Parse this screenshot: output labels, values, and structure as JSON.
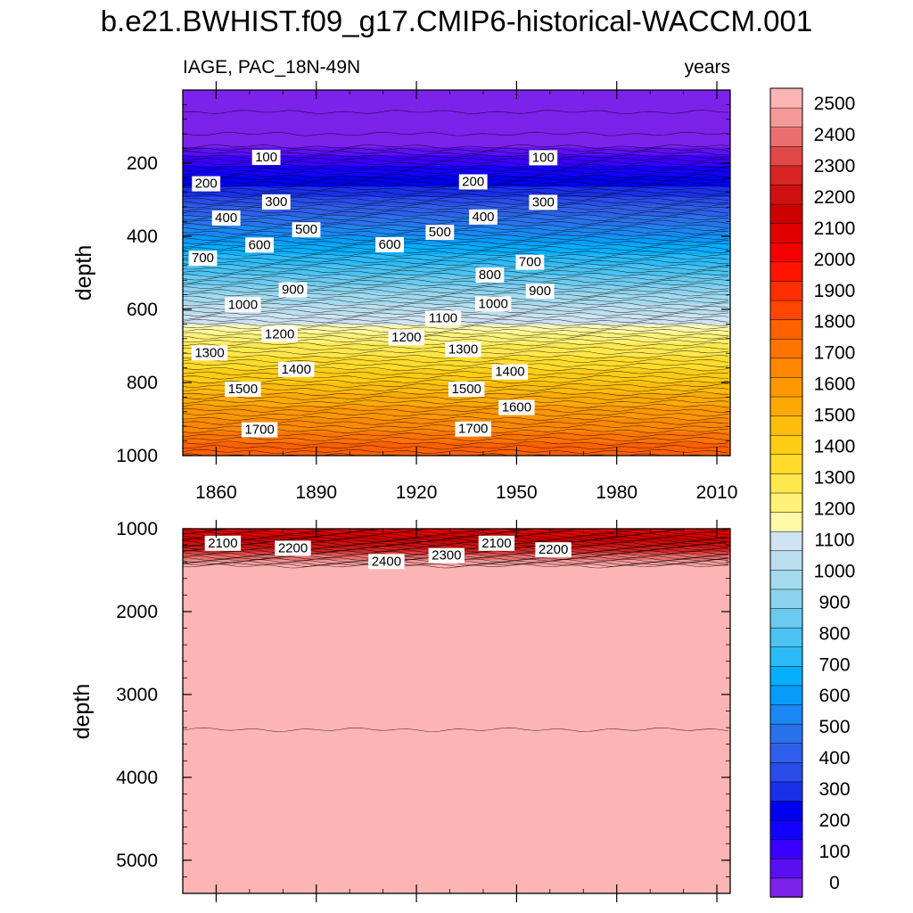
{
  "title": "b.e21.BWHIST.f09_g17.CMIP6-historical-WACCM.001",
  "chart_data": [
    {
      "type": "heatmap",
      "panel": "upper",
      "left_label": "IAGE, PAC_18N-49N",
      "right_label": "years",
      "ylabel": "depth",
      "xlim": [
        1850,
        2014
      ],
      "ylim": [
        1000,
        0
      ],
      "x_ticks": [
        1860,
        1890,
        1920,
        1950,
        1980,
        2010
      ],
      "y_ticks": [
        200,
        400,
        600,
        800,
        1000
      ],
      "contour_levels": [
        100,
        200,
        300,
        400,
        500,
        600,
        700,
        800,
        900,
        1000,
        1100,
        1200,
        1300,
        1400,
        1500,
        1600,
        1700
      ],
      "profile_depth": [
        0,
        150,
        690,
        1000
      ],
      "profile_age": [
        0,
        50,
        1250,
        1800
      ],
      "contour_labels": [
        {
          "text": "100",
          "x": 1875,
          "depth": 183
        },
        {
          "text": "200",
          "x": 1857,
          "depth": 255
        },
        {
          "text": "300",
          "x": 1878,
          "depth": 305
        },
        {
          "text": "400",
          "x": 1863,
          "depth": 349
        },
        {
          "text": "500",
          "x": 1887,
          "depth": 381
        },
        {
          "text": "600",
          "x": 1873,
          "depth": 423
        },
        {
          "text": "700",
          "x": 1856,
          "depth": 459
        },
        {
          "text": "900",
          "x": 1883,
          "depth": 545
        },
        {
          "text": "1000",
          "x": 1868,
          "depth": 586
        },
        {
          "text": "1200",
          "x": 1879,
          "depth": 667
        },
        {
          "text": "1300",
          "x": 1858,
          "depth": 718
        },
        {
          "text": "1400",
          "x": 1884,
          "depth": 763
        },
        {
          "text": "1500",
          "x": 1868,
          "depth": 817
        },
        {
          "text": "1700",
          "x": 1873,
          "depth": 928
        },
        {
          "text": "600",
          "x": 1912,
          "depth": 422
        },
        {
          "text": "1200",
          "x": 1917,
          "depth": 676
        },
        {
          "text": "200",
          "x": 1937,
          "depth": 250
        },
        {
          "text": "500",
          "x": 1927,
          "depth": 388
        },
        {
          "text": "1100",
          "x": 1928,
          "depth": 623
        },
        {
          "text": "1300",
          "x": 1934,
          "depth": 709
        },
        {
          "text": "1500",
          "x": 1935,
          "depth": 817
        },
        {
          "text": "1700",
          "x": 1937,
          "depth": 926
        },
        {
          "text": "400",
          "x": 1940,
          "depth": 346
        },
        {
          "text": "800",
          "x": 1942,
          "depth": 505
        },
        {
          "text": "1000",
          "x": 1943,
          "depth": 584
        },
        {
          "text": "1400",
          "x": 1948,
          "depth": 770
        },
        {
          "text": "1600",
          "x": 1950,
          "depth": 867
        },
        {
          "text": "100",
          "x": 1958,
          "depth": 184
        },
        {
          "text": "300",
          "x": 1958,
          "depth": 306
        },
        {
          "text": "700",
          "x": 1954,
          "depth": 470
        },
        {
          "text": "900",
          "x": 1957,
          "depth": 549
        }
      ]
    },
    {
      "type": "heatmap",
      "panel": "lower",
      "ylabel": "depth",
      "xlim": [
        1850,
        2014
      ],
      "ylim": [
        5400,
        1000
      ],
      "y_ticks": [
        1000,
        2000,
        3000,
        4000,
        5000
      ],
      "contour_levels": [
        2000,
        2100,
        2200,
        2300,
        2400,
        2500
      ],
      "profile_depth": [
        1000,
        1150,
        1450,
        5400
      ],
      "profile_age": [
        2000,
        2150,
        2480,
        2520
      ],
      "contour_labels": [
        {
          "text": "2100",
          "x": 1862,
          "depth": 1170
        },
        {
          "text": "2200",
          "x": 1883,
          "depth": 1230
        },
        {
          "text": "2400",
          "x": 1911,
          "depth": 1390
        },
        {
          "text": "2300",
          "x": 1929,
          "depth": 1320
        },
        {
          "text": "2100",
          "x": 1944,
          "depth": 1170
        },
        {
          "text": "2200",
          "x": 1961,
          "depth": 1250
        }
      ]
    }
  ],
  "colorbar": {
    "labels": [
      "2500",
      "2400",
      "2300",
      "2200",
      "2100",
      "2000",
      "1900",
      "1800",
      "1700",
      "1600",
      "1500",
      "1400",
      "1300",
      "1200",
      "1100",
      "1000",
      "900",
      "800",
      "700",
      "600",
      "500",
      "400",
      "300",
      "200",
      "100",
      "0"
    ],
    "colors": [
      "#7c22ea",
      "#5b10f2",
      "#3a00ff",
      "#1400ff",
      "#0000ee",
      "#1a30e8",
      "#2a4ce8",
      "#2f5fe8",
      "#2a72ec",
      "#1c86f2",
      "#0a9af8",
      "#06aefc",
      "#2cbaf6",
      "#4ac2f2",
      "#6ccaf0",
      "#8ad2ee",
      "#a4daee",
      "#bcdff0",
      "#cfe3f2",
      "#fffaa8",
      "#fff276",
      "#ffe84e",
      "#ffdc2c",
      "#ffcc14",
      "#ffbc0c",
      "#ffaa04",
      "#ff9800",
      "#ff8800",
      "#ff7400",
      "#ff6000",
      "#ff4600",
      "#ff2e00",
      "#ff1400",
      "#f50000",
      "#e00000",
      "#cc0000",
      "#d01010",
      "#d82424",
      "#e04848",
      "#ea7070",
      "#f49898",
      "#fdb4b4"
    ]
  }
}
